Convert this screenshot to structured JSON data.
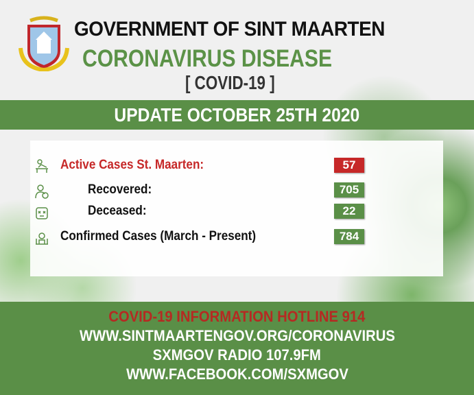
{
  "header": {
    "title": "GOVERNMENT OF SINT MAARTEN",
    "subtitle": "CORONAVIRUS DISEASE",
    "tag": "[ COVID-19 ]"
  },
  "update_banner": "UPDATE OCTOBER 25TH 2020",
  "stats": [
    {
      "icon": "patient-bed-icon",
      "label": "Active Cases St. Maarten:",
      "value": "57",
      "color": "#c62828"
    },
    {
      "icon": "recovered-person-icon",
      "label": "Recovered:",
      "value": "705",
      "color": "#5a8f47"
    },
    {
      "icon": "deceased-face-icon",
      "label": "Deceased:",
      "value": "22",
      "color": "#5a8f47"
    },
    {
      "icon": "confirmed-cases-icon",
      "label": "Confirmed Cases (March - Present)",
      "value": "784",
      "color": "#5a8f47"
    }
  ],
  "footer": {
    "hotline": "COVID-19 INFORMATION HOTLINE 914",
    "website": "WWW.SINTMAARTENGOV.ORG/CORONAVIRUS",
    "radio": "SXMGOV RADIO 107.9FM",
    "facebook": "WWW.FACEBOOK.COM/SXMGOV"
  },
  "colors": {
    "green": "#5a8f47",
    "red": "#c62828",
    "hotline_red": "#b52a22"
  }
}
